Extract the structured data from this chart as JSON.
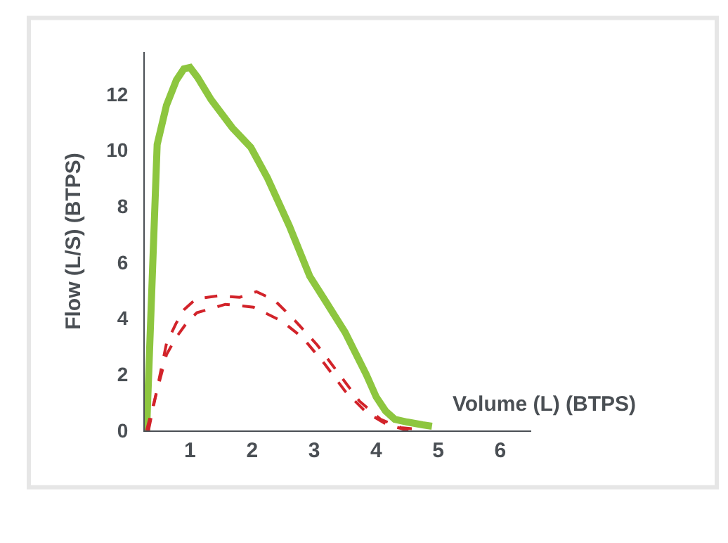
{
  "chart_data": {
    "type": "line",
    "xlabel": "Volume (L) (BTPS)",
    "ylabel": "Flow (L/S) (BTPS)",
    "xlim": [
      0.27,
      6.5
    ],
    "ylim": [
      0,
      13.5
    ],
    "xticks": [
      1,
      2,
      3,
      4,
      5,
      6
    ],
    "yticks": [
      0,
      2,
      4,
      6,
      8,
      10,
      12
    ],
    "marker": "none",
    "series": [
      {
        "color": "#8dc63f",
        "line_style": "solid",
        "x": [
          0.3,
          0.47,
          0.62,
          0.78,
          0.9,
          1.0,
          1.12,
          1.34,
          1.68,
          1.98,
          2.25,
          2.6,
          2.93,
          3.16,
          3.5,
          3.84,
          4.0,
          4.15,
          4.3,
          4.5,
          4.75,
          4.9
        ],
        "values": [
          0,
          10.2,
          11.6,
          12.5,
          12.9,
          12.95,
          12.6,
          11.8,
          10.8,
          10.1,
          9,
          7.3,
          5.5,
          4.7,
          3.5,
          2,
          1.2,
          0.7,
          0.4,
          0.3,
          0.2,
          0.15
        ]
      },
      {
        "color": "#d2232a",
        "line_style": "dashed",
        "x": [
          0.33,
          0.62,
          0.77,
          0.9,
          1.1,
          1.45,
          1.8,
          2.07,
          2.36,
          2.7,
          3.05,
          3.39,
          3.73,
          4.07,
          4.4,
          4.64
        ],
        "values": [
          0,
          3.1,
          3.8,
          4.3,
          4.7,
          4.8,
          4.75,
          4.95,
          4.65,
          3.9,
          3.05,
          2.05,
          1.05,
          0.4,
          0.1,
          0.05
        ]
      },
      {
        "color": "#d2232a",
        "line_style": "dashed",
        "x": [
          0.3,
          0.62,
          0.77,
          0.95,
          1.11,
          1.57,
          2.02,
          2.48,
          2.82,
          3.16,
          3.5,
          3.84,
          4.18,
          4.52
        ],
        "values": [
          0,
          2.7,
          3.3,
          3.85,
          4.2,
          4.5,
          4.4,
          3.9,
          3.3,
          2.4,
          1.4,
          0.65,
          0.2,
          0
        ]
      }
    ]
  }
}
